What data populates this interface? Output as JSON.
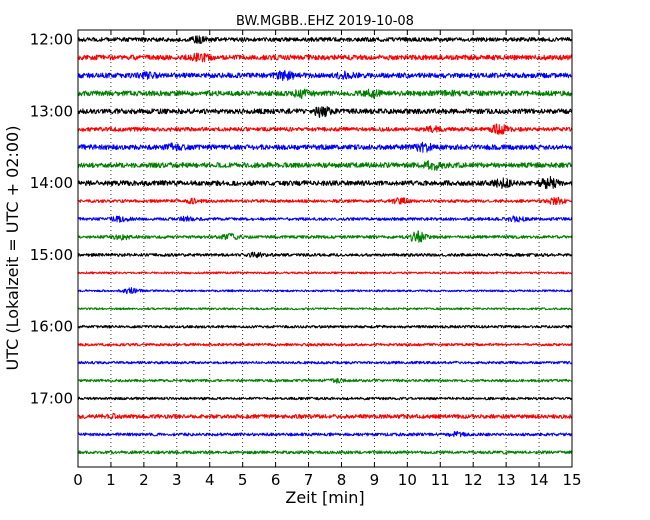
{
  "chart_data": {
    "type": "line",
    "title": "BW.MGBB..EHZ 2019-10-08",
    "xlabel": "Zeit  [min]",
    "ylabel": "UTC (Lokalzeit = UTC + 02:00)",
    "xlim": [
      0,
      15
    ],
    "x_ticks": [
      0,
      1,
      2,
      3,
      4,
      5,
      6,
      7,
      8,
      9,
      10,
      11,
      12,
      13,
      14,
      15
    ],
    "row_interval_minutes": 15,
    "y_ticks": [
      "12:00",
      "13:00",
      "14:00",
      "15:00",
      "16:00",
      "17:00"
    ],
    "grid": "vertical dotted lines at each minute",
    "colors": [
      "#000000",
      "#ff0000",
      "#0000ff",
      "#008000"
    ],
    "rows": [
      {
        "start": "12:00",
        "color": "#000000",
        "base": 2,
        "events": [
          [
            3.7,
            2.5
          ]
        ]
      },
      {
        "start": "12:15",
        "color": "#ff0000",
        "base": 2.5,
        "events": [
          [
            3.7,
            3
          ]
        ]
      },
      {
        "start": "12:30",
        "color": "#0000ff",
        "base": 2.5,
        "events": [
          [
            6.3,
            4
          ],
          [
            8.1,
            2
          ],
          [
            2.1,
            1.5
          ]
        ]
      },
      {
        "start": "12:45",
        "color": "#008000",
        "base": 2.5,
        "events": [
          [
            6.8,
            3
          ],
          [
            8.9,
            2.5
          ],
          [
            11.2,
            1.5
          ]
        ]
      },
      {
        "start": "13:00",
        "color": "#000000",
        "base": 2.5,
        "events": [
          [
            7.4,
            4
          ]
        ]
      },
      {
        "start": "13:15",
        "color": "#ff0000",
        "base": 2,
        "events": [
          [
            10.8,
            2
          ],
          [
            12.8,
            4
          ]
        ]
      },
      {
        "start": "13:30",
        "color": "#0000ff",
        "base": 2.5,
        "events": [
          [
            10.5,
            3
          ],
          [
            2.9,
            2
          ]
        ]
      },
      {
        "start": "13:45",
        "color": "#008000",
        "base": 2.5,
        "events": [
          [
            10.8,
            3.5
          ]
        ]
      },
      {
        "start": "14:00",
        "color": "#000000",
        "base": 2.5,
        "events": [
          [
            12.9,
            3
          ],
          [
            14.3,
            4.5
          ]
        ]
      },
      {
        "start": "14:15",
        "color": "#ff0000",
        "base": 1.5,
        "events": [
          [
            9.8,
            2.5
          ],
          [
            14.5,
            3
          ],
          [
            3.5,
            1.5
          ]
        ]
      },
      {
        "start": "14:30",
        "color": "#0000ff",
        "base": 1.5,
        "events": [
          [
            1.3,
            2
          ],
          [
            13.3,
            2
          ],
          [
            3.3,
            1.5
          ]
        ]
      },
      {
        "start": "14:45",
        "color": "#008000",
        "base": 1.5,
        "events": [
          [
            10.3,
            5
          ],
          [
            4.6,
            2.5
          ],
          [
            1.3,
            2
          ]
        ]
      },
      {
        "start": "15:00",
        "color": "#000000",
        "base": 1.5,
        "events": [
          [
            5.4,
            1.5
          ]
        ]
      },
      {
        "start": "15:15",
        "color": "#ff0000",
        "base": 1,
        "events": []
      },
      {
        "start": "15:30",
        "color": "#0000ff",
        "base": 1,
        "events": [
          [
            1.6,
            2.5
          ]
        ]
      },
      {
        "start": "15:45",
        "color": "#008000",
        "base": 1,
        "events": []
      },
      {
        "start": "16:00",
        "color": "#000000",
        "base": 1.3,
        "events": []
      },
      {
        "start": "16:15",
        "color": "#ff0000",
        "base": 1.3,
        "events": []
      },
      {
        "start": "16:30",
        "color": "#0000ff",
        "base": 1.3,
        "events": []
      },
      {
        "start": "16:45",
        "color": "#008000",
        "base": 1.3,
        "events": [
          [
            7.8,
            1.5
          ]
        ]
      },
      {
        "start": "17:00",
        "color": "#000000",
        "base": 1.3,
        "events": []
      },
      {
        "start": "17:15",
        "color": "#ff0000",
        "base": 2,
        "events": [
          [
            1,
            1.5
          ]
        ]
      },
      {
        "start": "17:30",
        "color": "#0000ff",
        "base": 1.5,
        "events": [
          [
            11.5,
            1.5
          ]
        ]
      },
      {
        "start": "17:45",
        "color": "#008000",
        "base": 1.5,
        "events": []
      }
    ]
  }
}
